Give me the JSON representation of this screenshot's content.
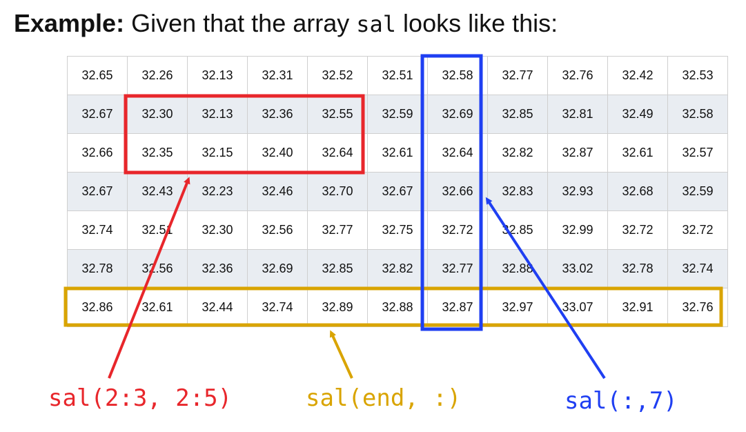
{
  "heading": {
    "bold": "Example:",
    "text_before": " Given that the array ",
    "code": "sal",
    "text_after": " looks like this:"
  },
  "table": {
    "rows": [
      [
        "32.65",
        "32.26",
        "32.13",
        "32.31",
        "32.52",
        "32.51",
        "32.58",
        "32.77",
        "32.76",
        "32.42",
        "32.53"
      ],
      [
        "32.67",
        "32.30",
        "32.13",
        "32.36",
        "32.55",
        "32.59",
        "32.69",
        "32.85",
        "32.81",
        "32.49",
        "32.58"
      ],
      [
        "32.66",
        "32.35",
        "32.15",
        "32.40",
        "32.64",
        "32.61",
        "32.64",
        "32.82",
        "32.87",
        "32.61",
        "32.57"
      ],
      [
        "32.67",
        "32.43",
        "32.23",
        "32.46",
        "32.70",
        "32.67",
        "32.66",
        "32.83",
        "32.93",
        "32.68",
        "32.59"
      ],
      [
        "32.74",
        "32.51",
        "32.30",
        "32.56",
        "32.77",
        "32.75",
        "32.72",
        "32.85",
        "32.99",
        "32.72",
        "32.72"
      ],
      [
        "32.78",
        "32.56",
        "32.36",
        "32.69",
        "32.85",
        "32.82",
        "32.77",
        "32.88",
        "33.02",
        "32.78",
        "32.74"
      ],
      [
        "32.86",
        "32.61",
        "32.44",
        "32.74",
        "32.89",
        "32.88",
        "32.87",
        "32.97",
        "33.07",
        "32.91",
        "32.76"
      ]
    ]
  },
  "annotations": {
    "red": {
      "label": "sal(2:3, 2:5)",
      "color": "#e8262b"
    },
    "gold": {
      "label": "sal(end, :)",
      "color": "#d9a400"
    },
    "blue": {
      "label": "sal(:,7)",
      "color": "#1f3ff2"
    }
  }
}
